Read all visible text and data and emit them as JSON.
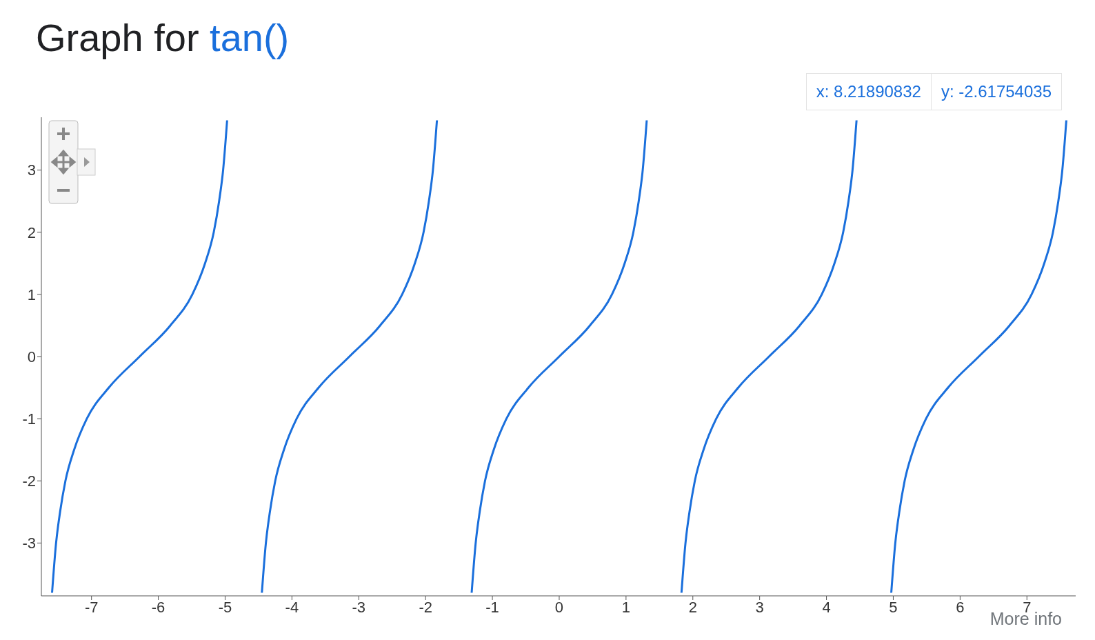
{
  "chart_data": {
    "type": "line",
    "title": "Graph for tan()",
    "x": [
      -7.59,
      -7.53,
      -7.47,
      -7.39,
      -7.26,
      -7.07,
      -6.74,
      -6.28,
      -5.82,
      -5.49,
      -5.3,
      -5.17,
      -5.09,
      -5.03,
      -4.97,
      -4.71,
      -4.45,
      -4.39,
      -4.33,
      -4.25,
      -4.12,
      -3.93,
      -3.6,
      -3.14,
      -2.68,
      -2.35,
      -2.16,
      -2.03,
      -1.95,
      -1.89,
      -1.83,
      -1.57,
      -1.31,
      -1.25,
      -1.19,
      -1.11,
      -0.98,
      -0.79,
      -0.46,
      0,
      0.46,
      0.79,
      0.98,
      1.11,
      1.19,
      1.25,
      1.31,
      1.57,
      1.83,
      1.89,
      1.95,
      2.03,
      2.16,
      2.35,
      2.68,
      3.14,
      3.6,
      3.93,
      4.12,
      4.25,
      4.33,
      4.39,
      4.45,
      4.71,
      4.97,
      5.03,
      5.09,
      5.17,
      5.3,
      5.49,
      5.82,
      6.28,
      6.74,
      7.07,
      7.26,
      7.39,
      7.47,
      7.53,
      7.59
    ],
    "series": [
      {
        "color": "#1a6fdc",
        "values": [
          -3.8,
          -3,
          -2.5,
          -2,
          -1.5,
          -1,
          -0.5,
          0,
          0.5,
          1,
          1.5,
          2,
          2.5,
          3,
          3.8,
          null,
          -3.8,
          -3,
          -2.5,
          -2,
          -1.5,
          -1,
          -0.5,
          0,
          0.5,
          1,
          1.5,
          2,
          2.5,
          3,
          3.8,
          null,
          -3.8,
          -3,
          -2.5,
          -2,
          -1.5,
          -1,
          -0.5,
          0,
          0.5,
          1,
          1.5,
          2,
          2.5,
          3,
          3.8,
          null,
          -3.8,
          -3,
          -2.5,
          -2,
          -1.5,
          -1,
          -0.5,
          0,
          0.5,
          1,
          1.5,
          2,
          2.5,
          3,
          3.8,
          null,
          -3.8,
          -3,
          -2.5,
          -2,
          -1.5,
          -1,
          -0.5,
          0,
          0.5,
          1,
          1.5,
          2,
          2.5,
          3,
          3.8
        ]
      }
    ],
    "xlim": [
      -7.75,
      7.73
    ],
    "xticks": [
      -7,
      -6,
      -5,
      -4,
      -3,
      -2,
      -1,
      0,
      1,
      2,
      3,
      4,
      5,
      6,
      7
    ],
    "ylim": [
      -3.85,
      3.85
    ],
    "yticks": [
      -3,
      -2,
      -1,
      0,
      1,
      2,
      3
    ],
    "marker": "none",
    "line_style": "solid",
    "annotations": [
      "x: 8.21890832",
      "y: -2.61754035",
      "More info"
    ]
  }
}
